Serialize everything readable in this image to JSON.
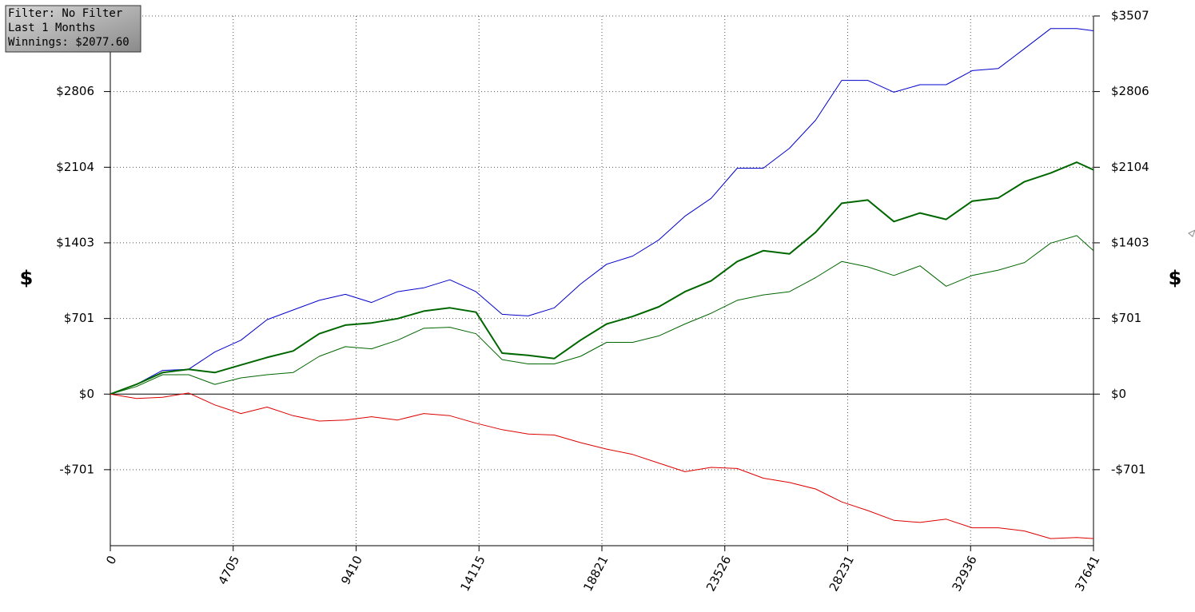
{
  "chart_data": {
    "type": "line",
    "ylabel": "$",
    "annotations": [
      "Filter: No Filter",
      "Last 1 Months",
      "Winnings: $2077.60"
    ],
    "x": [
      0,
      1000,
      2000,
      3000,
      4000,
      5000,
      6000,
      7000,
      8000,
      9000,
      10000,
      11000,
      12000,
      13000,
      14000,
      15000,
      16000,
      17000,
      18000,
      19000,
      20000,
      21000,
      22000,
      23000,
      24000,
      25000,
      26000,
      27000,
      28000,
      29000,
      30000,
      31000,
      32000,
      33000,
      34000,
      35000,
      36000,
      37000,
      37641
    ],
    "series": [
      {
        "color": "#0000cc",
        "width": 1,
        "values": [
          0,
          90,
          220,
          230,
          390,
          500,
          690,
          780,
          870,
          925,
          850,
          950,
          985,
          1060,
          950,
          740,
          725,
          800,
          1020,
          1205,
          1280,
          1430,
          1650,
          1815,
          2095,
          2095,
          2280,
          2540,
          2910,
          2910,
          2800,
          2870,
          2870,
          3000,
          3020,
          3205,
          3390,
          3390,
          3370
        ]
      },
      {
        "color": "#006600",
        "width": 2,
        "values": [
          0,
          90,
          200,
          230,
          200,
          270,
          340,
          400,
          560,
          640,
          660,
          700,
          770,
          800,
          760,
          380,
          360,
          330,
          500,
          650,
          720,
          810,
          950,
          1050,
          1230,
          1330,
          1300,
          1500,
          1770,
          1800,
          1600,
          1680,
          1620,
          1790,
          1820,
          1970,
          2050,
          2150,
          2080
        ]
      },
      {
        "color": "#006600",
        "width": 1,
        "values": [
          0,
          70,
          180,
          180,
          90,
          150,
          180,
          200,
          350,
          440,
          420,
          500,
          610,
          620,
          560,
          320,
          280,
          280,
          350,
          480,
          480,
          540,
          650,
          750,
          870,
          920,
          950,
          1080,
          1230,
          1180,
          1100,
          1190,
          1000,
          1100,
          1150,
          1220,
          1400,
          1470,
          1330
        ]
      },
      {
        "color": "#dd0000",
        "width": 1,
        "values": [
          0,
          -40,
          -30,
          10,
          -100,
          -180,
          -120,
          -200,
          -250,
          -240,
          -210,
          -240,
          -180,
          -200,
          -270,
          -330,
          -370,
          -380,
          -450,
          -510,
          -560,
          -640,
          -720,
          -680,
          -690,
          -780,
          -820,
          -880,
          -1000,
          -1080,
          -1170,
          -1190,
          -1160,
          -1240,
          -1240,
          -1270,
          -1340,
          -1330,
          -1340
        ]
      }
    ],
    "xlim": [
      0,
      37641
    ],
    "xticks": [
      0,
      4705,
      9410,
      14115,
      18821,
      23526,
      28231,
      32936,
      37641
    ],
    "ylim": [
      -1406,
      3507
    ],
    "yticks": [
      {
        "value": -701,
        "label": "-$701"
      },
      {
        "value": 0,
        "label": "$0"
      },
      {
        "value": 701,
        "label": "$701"
      },
      {
        "value": 1403,
        "label": "$1403"
      },
      {
        "value": 2104,
        "label": "$2104"
      },
      {
        "value": 2806,
        "label": "$2806"
      },
      {
        "value": 3507,
        "label": "$3507"
      }
    ],
    "grid": true
  }
}
